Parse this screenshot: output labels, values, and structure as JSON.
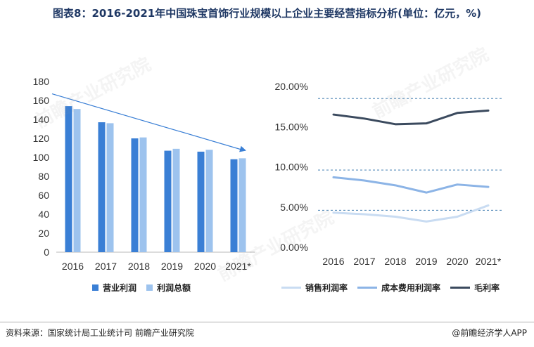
{
  "title": "图表8：2016-2021年中国珠宝首饰行业规模以上企业主要经营指标分析(单位：亿元，%)",
  "footer": {
    "source": "资料来源：国家统计局工业统计司 前瞻产业研究院",
    "brand": "@前瞻经济学人APP"
  },
  "watermark": "前瞻产业研究院",
  "colors": {
    "bar_revenue": "#3a7fd5",
    "bar_profit": "#9dc3ee",
    "trend_arrow": "#3a7fd5",
    "line_sales": "#c9dcf2",
    "line_cost": "#8cb4e6",
    "line_gross": "#3b4a5e",
    "ref_lines": "#2a6fa8"
  },
  "chart_data": [
    {
      "type": "bar",
      "categories": [
        "2016",
        "2017",
        "2018",
        "2019",
        "2020",
        "2021*"
      ],
      "series": [
        {
          "name": "营业利润",
          "values": [
            154,
            137,
            120,
            107,
            106,
            98
          ]
        },
        {
          "name": "利润总额",
          "values": [
            151,
            136,
            121,
            109,
            108,
            99
          ]
        }
      ],
      "yticks": [
        "0",
        "20",
        "40",
        "60",
        "80",
        "100",
        "120",
        "140",
        "160",
        "180"
      ],
      "ylim": [
        0,
        180
      ],
      "grid": false,
      "trend_arrow": true,
      "legend": "bottom"
    },
    {
      "type": "line",
      "categories": [
        "2016",
        "2017",
        "2018",
        "2019",
        "2020",
        "2021*"
      ],
      "series": [
        {
          "name": "销售利润率",
          "values": [
            4.3,
            4.1,
            3.8,
            3.2,
            3.8,
            5.2
          ]
        },
        {
          "name": "成本费用利润率",
          "values": [
            8.7,
            8.3,
            7.7,
            6.8,
            7.8,
            7.5
          ]
        },
        {
          "name": "毛利率",
          "values": [
            16.5,
            16.0,
            15.3,
            15.4,
            16.7,
            17.0
          ]
        }
      ],
      "yticks": [
        "0.00%",
        "5.00%",
        "10.00%",
        "15.00%",
        "20.00%"
      ],
      "ylim": [
        0,
        20
      ],
      "grid": false,
      "legend": "bottom"
    }
  ]
}
